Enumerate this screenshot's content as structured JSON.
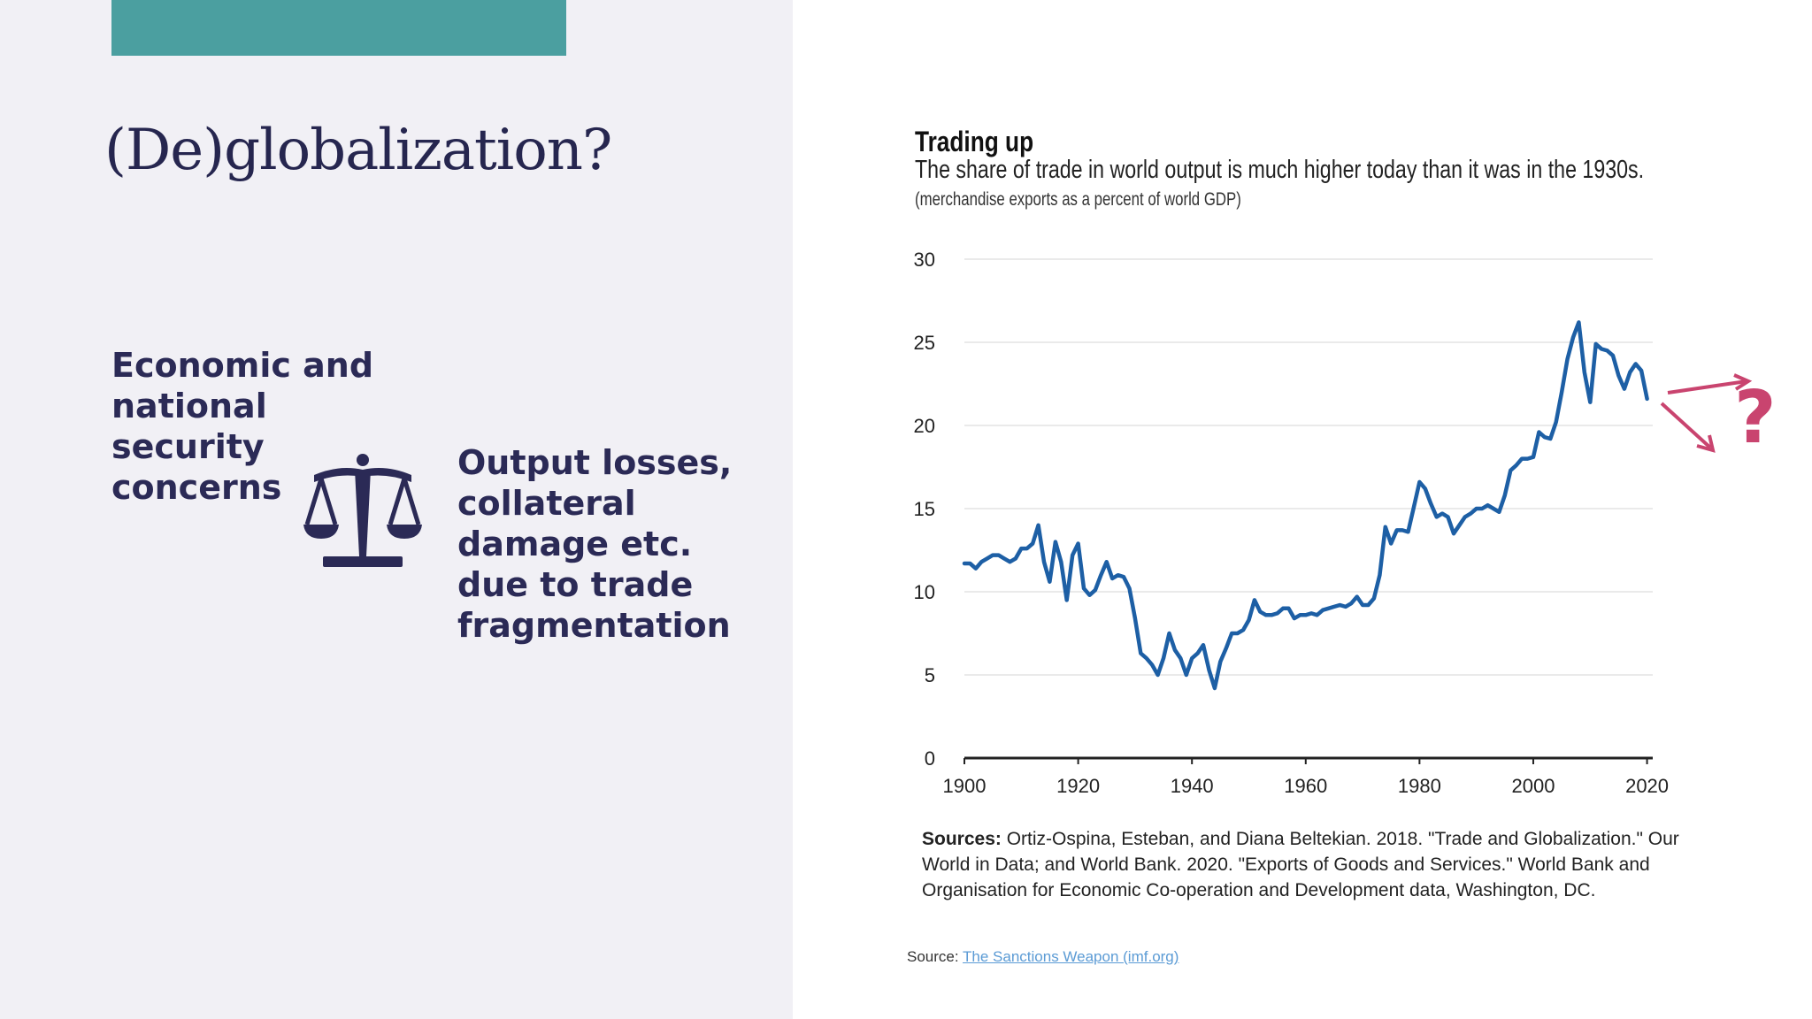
{
  "slide": {
    "title": "(De)globalization?",
    "point_left": "Economic and national security concerns",
    "point_right": "Output losses, collateral damage etc. due to trade fragmentation",
    "icon": "balance-scale-icon"
  },
  "colors": {
    "accent_bar": "#4b9fa0",
    "left_panel": "#f1f0f5",
    "heading": "#2b2a56",
    "chart_line": "#1d5fa5",
    "annotation": "#c9446f"
  },
  "chart_data": {
    "type": "line",
    "title": "Trading up",
    "subtitle": "The share of trade in world output is much higher today than it was in the 1930s.",
    "note": "(merchandise exports as a percent of world GDP)",
    "xlim": [
      1900,
      2021
    ],
    "ylim": [
      0,
      30
    ],
    "x_ticks": [
      1900,
      1920,
      1940,
      1960,
      1980,
      2000,
      2020
    ],
    "y_ticks": [
      0,
      5,
      10,
      15,
      20,
      25,
      30
    ],
    "grid": true,
    "annotation": "?",
    "series": [
      {
        "x": [
          1900,
          1901,
          1902,
          1903,
          1904,
          1905,
          1906,
          1907,
          1908,
          1909,
          1910,
          1911,
          1912,
          1913,
          1914,
          1915,
          1916,
          1917,
          1918,
          1919,
          1920,
          1921,
          1922,
          1923,
          1924,
          1925,
          1926,
          1927,
          1928,
          1929,
          1930,
          1931,
          1932,
          1933,
          1934,
          1935,
          1936,
          1937,
          1938,
          1939,
          1940,
          1941,
          1942,
          1943,
          1944,
          1945,
          1946,
          1947,
          1948,
          1949,
          1950,
          1951,
          1952,
          1953,
          1954,
          1955,
          1956,
          1957,
          1958,
          1959,
          1960,
          1961,
          1962,
          1963,
          1964,
          1965,
          1966,
          1967,
          1968,
          1969,
          1970,
          1971,
          1972,
          1973,
          1974,
          1975,
          1976,
          1977,
          1978,
          1979,
          1980,
          1981,
          1982,
          1983,
          1984,
          1985,
          1986,
          1987,
          1988,
          1989,
          1990,
          1991,
          1992,
          1993,
          1994,
          1995,
          1996,
          1997,
          1998,
          1999,
          2000,
          2001,
          2002,
          2003,
          2004,
          2005,
          2006,
          2007,
          2008,
          2009,
          2010,
          2011,
          2012,
          2013,
          2014,
          2015,
          2016,
          2017,
          2018,
          2019,
          2020
        ],
        "y": [
          11.7,
          11.7,
          11.4,
          11.8,
          12.0,
          12.2,
          12.2,
          12.0,
          11.8,
          12.0,
          12.6,
          12.6,
          12.9,
          14.0,
          11.8,
          10.6,
          13.0,
          11.8,
          9.5,
          12.2,
          12.9,
          10.2,
          9.8,
          10.1,
          11.0,
          11.8,
          10.8,
          11.0,
          10.9,
          10.2,
          8.4,
          6.3,
          6.0,
          5.6,
          5.0,
          6.0,
          7.5,
          6.5,
          6.0,
          5.0,
          6.0,
          6.3,
          6.8,
          5.3,
          4.2,
          5.8,
          6.6,
          7.5,
          7.5,
          7.7,
          8.3,
          9.5,
          8.8,
          8.6,
          8.6,
          8.7,
          9.0,
          9.0,
          8.4,
          8.6,
          8.6,
          8.7,
          8.6,
          8.9,
          9.0,
          9.1,
          9.2,
          9.1,
          9.3,
          9.7,
          9.2,
          9.2,
          9.6,
          11.0,
          13.9,
          12.9,
          13.7,
          13.7,
          13.6,
          15.1,
          16.6,
          16.2,
          15.3,
          14.5,
          14.7,
          14.5,
          13.5,
          14.0,
          14.5,
          14.7,
          15.0,
          15.0,
          15.2,
          15.0,
          14.8,
          15.8,
          17.3,
          17.6,
          18.0,
          18.0,
          18.1,
          19.6,
          19.3,
          19.2,
          20.2,
          22.0,
          24.0,
          25.3,
          26.2,
          23.2,
          21.4,
          24.9,
          24.6,
          24.5,
          24.2,
          23.0,
          22.2,
          23.2,
          23.7,
          23.3,
          21.6
        ]
      }
    ]
  },
  "sources": {
    "label": "Sources:",
    "text": " Ortiz-Ospina, Esteban, and Diana Beltekian. 2018. \"Trade and Globalization.\" Our World in Data; and World Bank. 2020. \"Exports of Goods and Services.\" World Bank and Organisation for Economic Co-operation and Development data, Washington, DC."
  },
  "footer": {
    "label": "Source: ",
    "link_text": "The Sanctions Weapon (imf.org)"
  }
}
